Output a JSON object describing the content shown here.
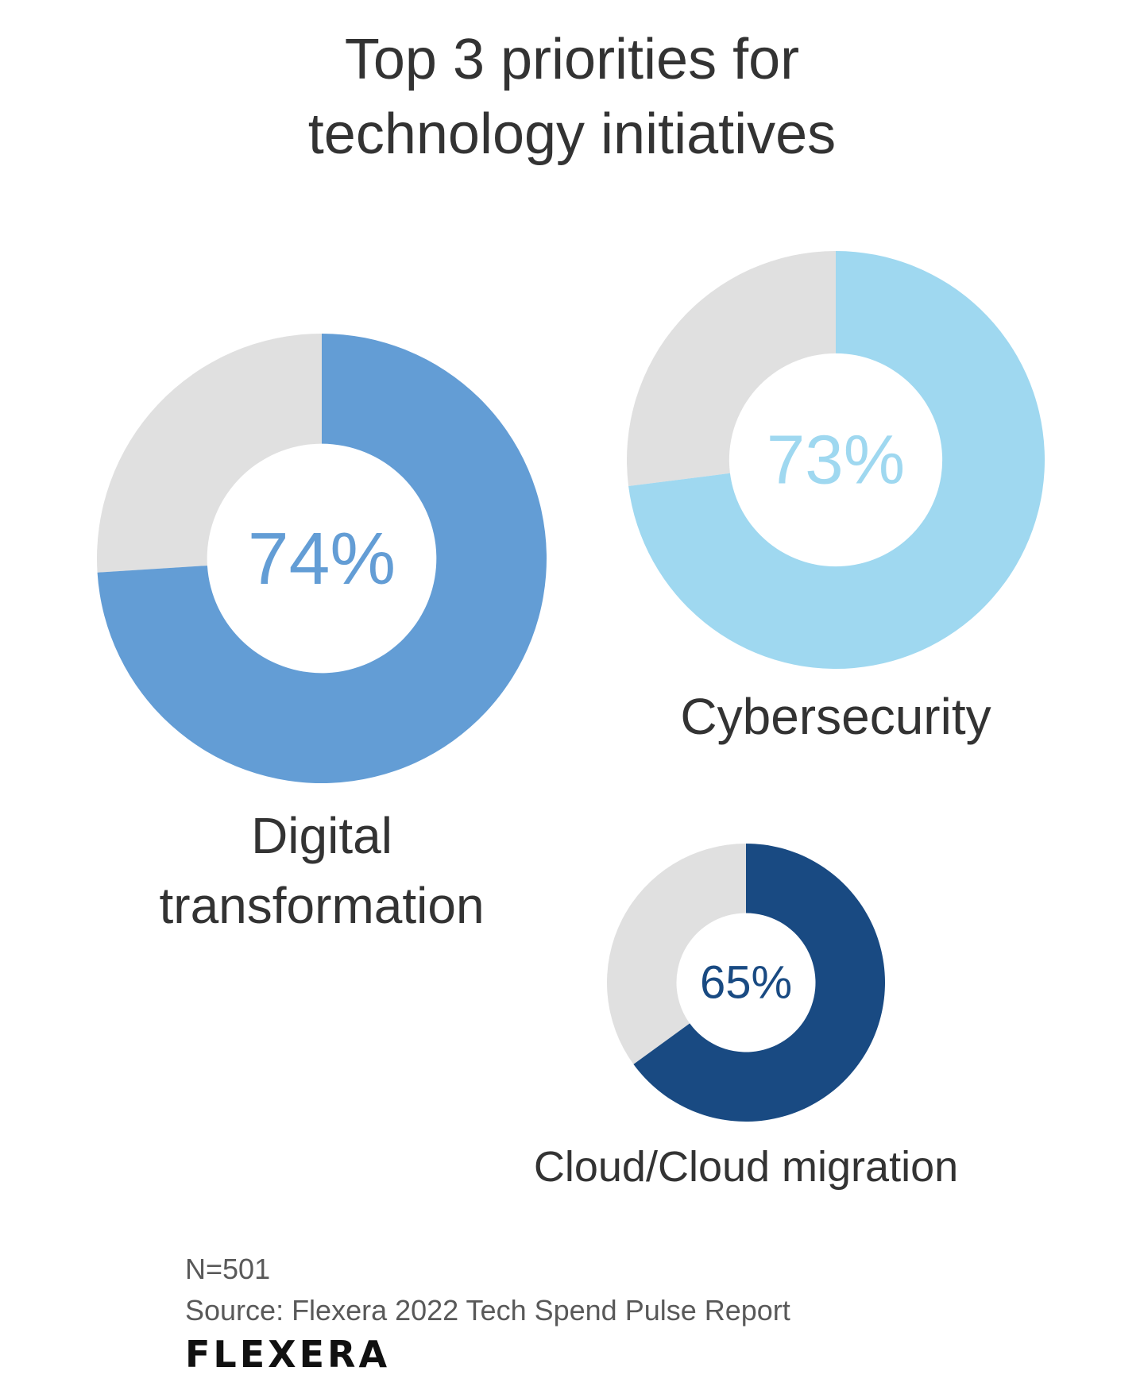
{
  "title_lines": [
    "Top 3 priorities for",
    "technology initiatives"
  ],
  "chart_data": {
    "type": "pie",
    "variant": "donut",
    "title": "Top 3 priorities for technology initiatives",
    "series": [
      {
        "name": "Digital transformation",
        "value": 74,
        "value_label": "74%",
        "color": "#639dd5"
      },
      {
        "name": "Cybersecurity",
        "value": 73,
        "value_label": "73%",
        "color": "#9fd8f0"
      },
      {
        "name": "Cloud/Cloud migration",
        "value": 65,
        "value_label": "65%",
        "color": "#194a82"
      }
    ],
    "remainder_color": "#e0e0e0",
    "max": 100
  },
  "labels": {
    "digital": [
      "Digital",
      "transformation"
    ],
    "cyber": [
      "Cybersecurity"
    ],
    "cloud": [
      "Cloud/Cloud migration"
    ]
  },
  "footnote": {
    "n": "N=501",
    "source": "Source: Flexera 2022 Tech Spend Pulse Report"
  },
  "logo_text": "FLEXERA"
}
